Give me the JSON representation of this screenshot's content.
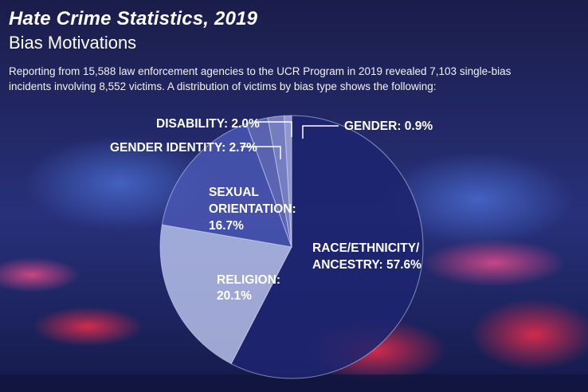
{
  "header": {
    "title": "Hate Crime Statistics, 2019",
    "subtitle": "Bias Motivations",
    "description_line1": "Reporting from 15,588 law enforcement agencies to the UCR Program in 2019 revealed 7,103 single-bias",
    "description_line2": "incidents involving 8,552 victims. A distribution of victims by bias type shows the following:"
  },
  "chart_data": {
    "type": "pie",
    "title": "Bias Motivations",
    "slices": [
      {
        "name": "Race/Ethnicity/Ancestry",
        "value": 57.6,
        "label_lines": [
          "RACE/ETHNICITY/",
          "ANCESTRY: 57.6%"
        ],
        "color": "#1e2470"
      },
      {
        "name": "Religion",
        "value": 20.1,
        "label_lines": [
          "RELIGION:",
          "20.1%"
        ],
        "color": "#bcc6ee"
      },
      {
        "name": "Sexual Orientation",
        "value": 16.7,
        "label_lines": [
          "SEXUAL",
          "ORIENTATION:",
          "16.7%"
        ],
        "color": "#4a58b4"
      },
      {
        "name": "Gender Identity",
        "value": 2.7,
        "label_lines": [
          "GENDER IDENTITY: 2.7%"
        ],
        "color": "#6670c0"
      },
      {
        "name": "Disability",
        "value": 2.0,
        "label_lines": [
          "DISABILITY: 2.0%"
        ],
        "color": "#8890d2"
      },
      {
        "name": "Gender",
        "value": 0.9,
        "label_lines": [
          "GENDER: 0.9%"
        ],
        "color": "#a8b0e2"
      }
    ]
  }
}
